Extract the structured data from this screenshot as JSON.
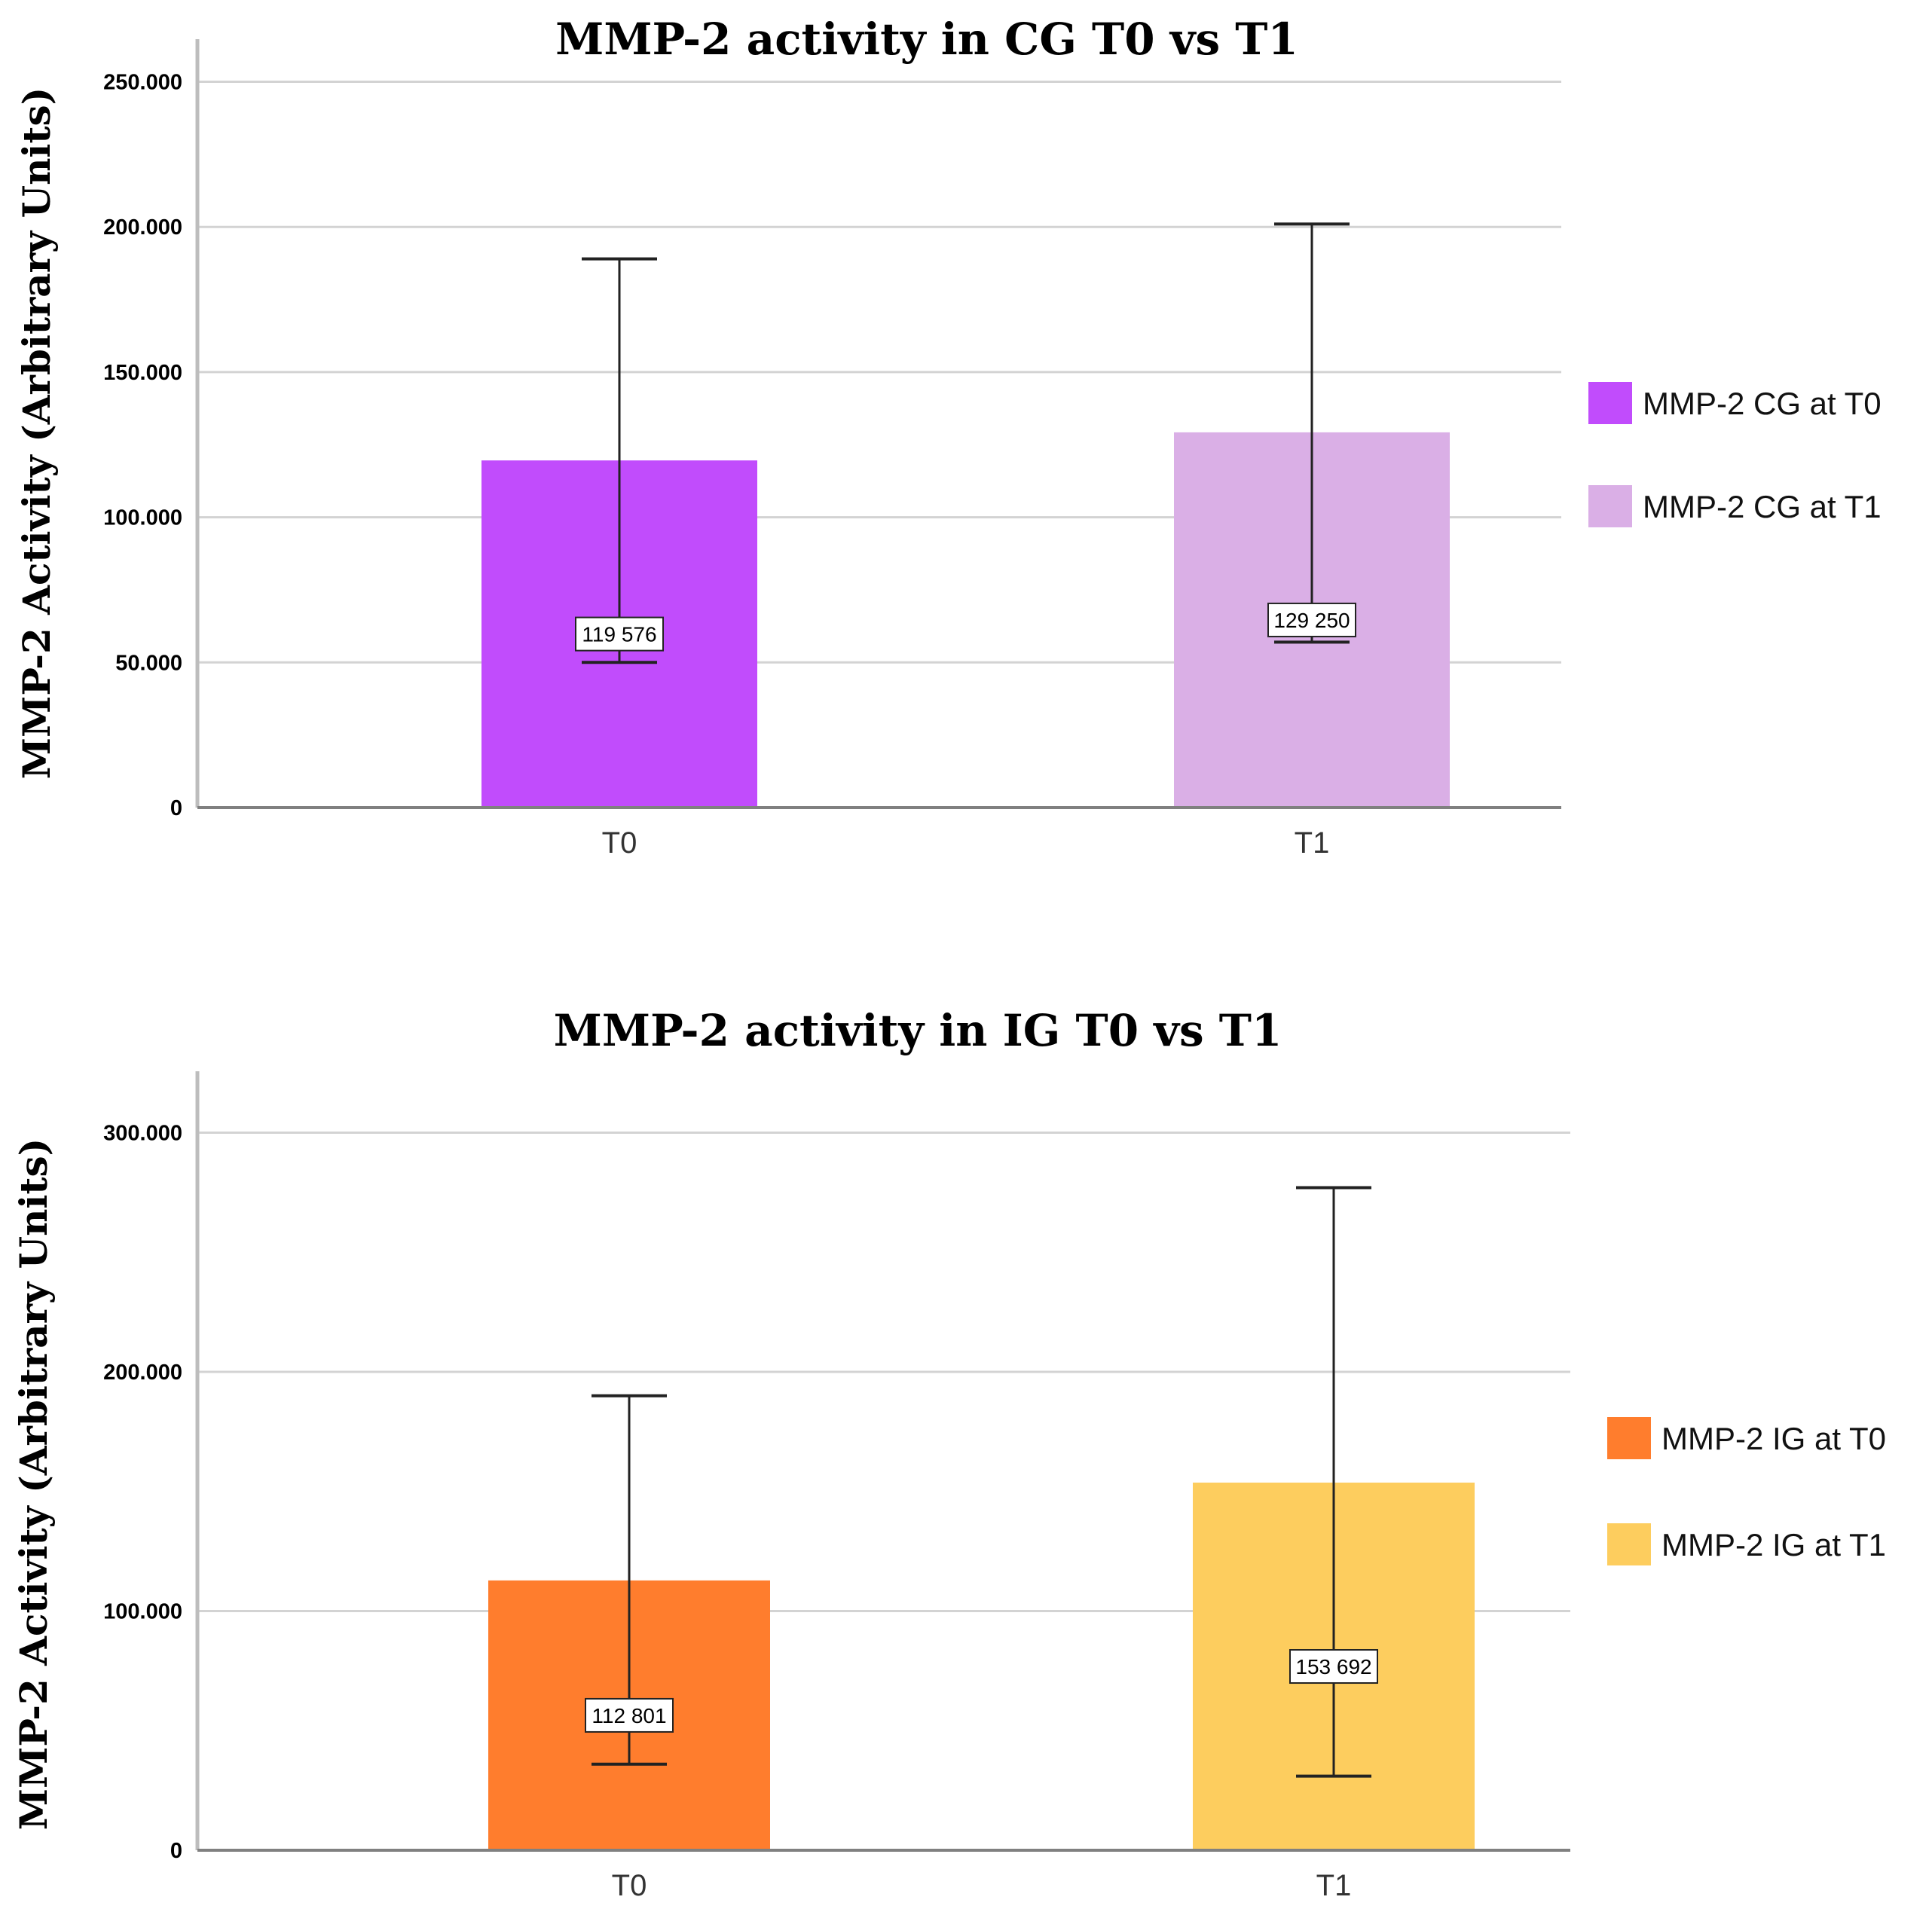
{
  "chart_data": [
    {
      "type": "bar",
      "title": "MMP-2 activity in CG T0 vs T1",
      "ylabel": "MMP-2 Activity (Arbitrary Units)",
      "xlabel": "",
      "categories": [
        "T0",
        "T1"
      ],
      "values": [
        119576,
        129250
      ],
      "data_labels": [
        "119 576",
        "129 250"
      ],
      "error_bars": [
        {
          "low": 50000,
          "high": 189000
        },
        {
          "low": 57000,
          "high": 201000
        }
      ],
      "ylim": [
        0,
        260000
      ],
      "yticks": [
        0,
        50000,
        100000,
        150000,
        200000,
        250000
      ],
      "ytick_labels": [
        "0",
        "50.000",
        "100.000",
        "150.000",
        "200.000",
        "250.000"
      ],
      "grid": true,
      "legend": {
        "placement": "right",
        "entries": [
          {
            "label": "MMP-2 CG at T0",
            "color": "#C14CFC"
          },
          {
            "label": "MMP-2 CG at T1",
            "color": "#DAAFE6"
          }
        ]
      },
      "colors": [
        "#C14CFC",
        "#DAAFE6"
      ]
    },
    {
      "type": "bar",
      "title": "MMP-2 activity in IG T0 vs T1",
      "ylabel": "MMP-2 Activity (Arbitrary Units)",
      "xlabel": "",
      "categories": [
        "T0",
        "T1"
      ],
      "values": [
        112801,
        153692
      ],
      "data_labels": [
        "112 801",
        "153 692"
      ],
      "error_bars": [
        {
          "low": 36000,
          "high": 190000
        },
        {
          "low": 31000,
          "high": 277000
        }
      ],
      "ylim": [
        0,
        320000
      ],
      "yticks": [
        0,
        100000,
        200000,
        300000
      ],
      "ytick_labels": [
        "0",
        "100.000",
        "200.000",
        "300.000"
      ],
      "grid": true,
      "legend": {
        "placement": "right",
        "entries": [
          {
            "label": "MMP-2 IG at T0",
            "color": "#FF7D2D"
          },
          {
            "label": "MMP-2 IG at T1",
            "color": "#FDCD5E"
          }
        ]
      },
      "colors": [
        "#FF7D2D",
        "#FDCD5E"
      ]
    }
  ]
}
